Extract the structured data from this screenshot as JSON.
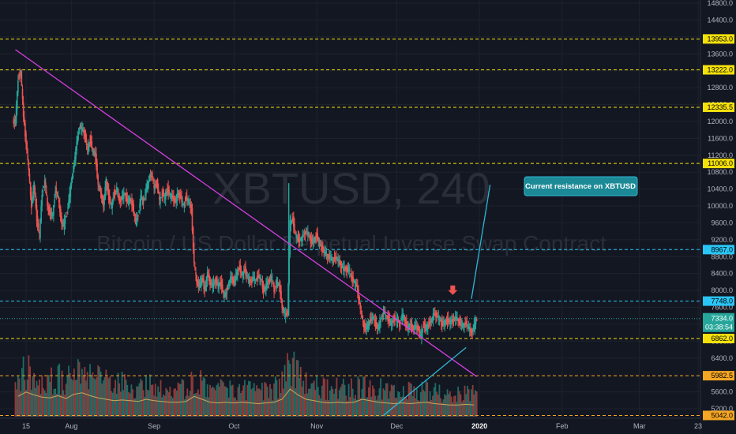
{
  "chart_data": {
    "type": "line",
    "symbol": "XBTUSD, 240",
    "description": "Bitcoin / US Dollar Perpetual Inverse Swap Contract",
    "ylim": [
      4800,
      15000
    ],
    "y_ticks": [
      5200,
      5600,
      6400,
      6800,
      7200,
      7600,
      8000,
      8400,
      8800,
      9200,
      9600,
      10000,
      10400,
      10800,
      11200,
      11600,
      12000,
      12400,
      12800,
      13200,
      13600,
      14000,
      14400,
      14800
    ],
    "y_tick_labels": [
      "5200.0",
      "5600.0",
      "6400.0",
      "6800.0",
      "7200.0",
      "7600.0",
      "8000.0",
      "8400.0",
      "8800.0",
      "9200.0",
      "9600.0",
      "10000.0",
      "10400.0",
      "10800.0",
      "11200.0",
      "11600.0",
      "12000.0",
      "12400.0",
      "12800.0",
      "13200.0",
      "13600.0",
      "14000.0",
      "14400.0",
      "14800.0"
    ],
    "x_ticks": [
      "15",
      "Aug",
      "Sep",
      "Oct",
      "Nov",
      "Dec",
      "2020",
      "Feb",
      "Mar",
      "23"
    ],
    "x_tick_days": [
      0,
      17,
      48,
      78,
      109,
      139,
      170,
      201,
      230,
      252
    ],
    "x_range_days": [
      -4,
      253
    ],
    "levels": [
      {
        "value": 13953,
        "label": "13953.0",
        "style": "yellow-dashed"
      },
      {
        "value": 13222,
        "label": "13222.0",
        "style": "yellow-dashed"
      },
      {
        "value": 12335.5,
        "label": "12335.5",
        "style": "yellow-dashed"
      },
      {
        "value": 11006,
        "label": "11006.0",
        "style": "yellow-dashed"
      },
      {
        "value": 8967,
        "label": "8967.0",
        "style": "cyan-dashed"
      },
      {
        "value": 7748,
        "label": "7748.0",
        "style": "cyan-dashed"
      },
      {
        "value": 6862,
        "label": "6862.0",
        "style": "yellow-dashed"
      },
      {
        "value": 5982.5,
        "label": "5982.5",
        "style": "orange-dashed"
      },
      {
        "value": 5042,
        "label": "5042.0",
        "style": "orange-dashed"
      }
    ],
    "last_price": {
      "value": 7334,
      "label": "7334.0",
      "countdown": "03:38:54"
    },
    "series": [
      {
        "values": [
          [
            -4,
            12000
          ],
          [
            -3,
            13000
          ],
          [
            -2,
            13200
          ],
          [
            -1,
            12100
          ],
          [
            0,
            11500
          ],
          [
            1,
            10800
          ],
          [
            2,
            10000
          ],
          [
            3,
            10500
          ],
          [
            4,
            9700
          ],
          [
            5,
            9300
          ],
          [
            6,
            10300
          ],
          [
            7,
            10600
          ],
          [
            8,
            10000
          ],
          [
            9,
            9800
          ],
          [
            10,
            9800
          ],
          [
            11,
            10400
          ],
          [
            12,
            10200
          ],
          [
            13,
            9700
          ],
          [
            14,
            9500
          ],
          [
            15,
            9800
          ],
          [
            16,
            10100
          ],
          [
            17,
            10600
          ],
          [
            18,
            11000
          ],
          [
            19,
            11500
          ],
          [
            20,
            11900
          ],
          [
            21,
            11800
          ],
          [
            22,
            11700
          ],
          [
            23,
            11300
          ],
          [
            24,
            11600
          ],
          [
            25,
            11300
          ],
          [
            26,
            11200
          ],
          [
            27,
            10500
          ],
          [
            28,
            10300
          ],
          [
            29,
            10000
          ],
          [
            30,
            10600
          ],
          [
            31,
            10200
          ],
          [
            32,
            10000
          ],
          [
            33,
            10300
          ],
          [
            34,
            10400
          ],
          [
            35,
            10100
          ],
          [
            36,
            10200
          ],
          [
            37,
            10300
          ],
          [
            38,
            10100
          ],
          [
            39,
            10150
          ],
          [
            40,
            10000
          ],
          [
            41,
            9600
          ],
          [
            42,
            9800
          ],
          [
            43,
            10200
          ],
          [
            44,
            10100
          ],
          [
            45,
            10400
          ],
          [
            46,
            10600
          ],
          [
            47,
            10800
          ],
          [
            48,
            10400
          ],
          [
            49,
            10600
          ],
          [
            50,
            10100
          ],
          [
            51,
            10300
          ],
          [
            52,
            10200
          ],
          [
            53,
            10400
          ],
          [
            54,
            10250
          ],
          [
            55,
            10200
          ],
          [
            56,
            10100
          ],
          [
            57,
            10300
          ],
          [
            58,
            10200
          ],
          [
            59,
            10000
          ],
          [
            60,
            10200
          ],
          [
            61,
            10100
          ],
          [
            62,
            9900
          ],
          [
            63,
            8600
          ],
          [
            64,
            8200
          ],
          [
            65,
            8100
          ],
          [
            66,
            8300
          ],
          [
            67,
            8000
          ],
          [
            68,
            8400
          ],
          [
            69,
            8200
          ],
          [
            70,
            8100
          ],
          [
            71,
            8250
          ],
          [
            72,
            8100
          ],
          [
            73,
            8200
          ],
          [
            74,
            7900
          ],
          [
            75,
            7900
          ],
          [
            76,
            8200
          ],
          [
            77,
            8300
          ],
          [
            78,
            8200
          ],
          [
            79,
            8400
          ],
          [
            80,
            8550
          ],
          [
            81,
            8350
          ],
          [
            82,
            8500
          ],
          [
            83,
            8300
          ],
          [
            84,
            8200
          ],
          [
            85,
            8300
          ],
          [
            86,
            8250
          ],
          [
            87,
            8350
          ],
          [
            88,
            8250
          ],
          [
            89,
            8000
          ],
          [
            90,
            8100
          ],
          [
            91,
            8250
          ],
          [
            92,
            8300
          ],
          [
            93,
            8000
          ],
          [
            94,
            8200
          ],
          [
            95,
            8100
          ],
          [
            96,
            7600
          ],
          [
            97,
            7400
          ],
          [
            98,
            7500
          ],
          [
            99,
            9600
          ],
          [
            100,
            9700
          ],
          [
            101,
            9300
          ],
          [
            102,
            9200
          ],
          [
            103,
            9200
          ],
          [
            104,
            9300
          ],
          [
            105,
            9400
          ],
          [
            106,
            9300
          ],
          [
            107,
            9150
          ],
          [
            108,
            9200
          ],
          [
            109,
            9300
          ],
          [
            110,
            9100
          ],
          [
            111,
            9000
          ],
          [
            112,
            8900
          ],
          [
            113,
            8800
          ],
          [
            114,
            8800
          ],
          [
            115,
            8700
          ],
          [
            116,
            8800
          ],
          [
            117,
            8700
          ],
          [
            118,
            8600
          ],
          [
            119,
            8500
          ],
          [
            120,
            8500
          ],
          [
            121,
            8500
          ],
          [
            122,
            8300
          ],
          [
            123,
            8200
          ],
          [
            124,
            8100
          ],
          [
            125,
            7700
          ],
          [
            126,
            7300
          ],
          [
            127,
            7100
          ],
          [
            128,
            7150
          ],
          [
            129,
            7300
          ],
          [
            130,
            7400
          ],
          [
            131,
            7200
          ],
          [
            132,
            7100
          ],
          [
            133,
            7300
          ],
          [
            134,
            7500
          ],
          [
            135,
            7400
          ],
          [
            136,
            7300
          ],
          [
            137,
            7200
          ],
          [
            138,
            7350
          ],
          [
            139,
            7300
          ],
          [
            140,
            7200
          ],
          [
            141,
            7400
          ],
          [
            142,
            7300
          ],
          [
            143,
            7100
          ],
          [
            144,
            7200
          ],
          [
            145,
            7100
          ],
          [
            146,
            7150
          ],
          [
            147,
            7100
          ],
          [
            148,
            6900
          ],
          [
            149,
            7200
          ],
          [
            150,
            7100
          ],
          [
            151,
            7200
          ],
          [
            152,
            7300
          ],
          [
            153,
            7450
          ],
          [
            154,
            7400
          ],
          [
            155,
            7300
          ],
          [
            156,
            7200
          ],
          [
            157,
            7250
          ],
          [
            158,
            7300
          ],
          [
            159,
            7250
          ],
          [
            160,
            7300
          ],
          [
            161,
            7350
          ],
          [
            162,
            7300
          ],
          [
            163,
            7200
          ],
          [
            164,
            7150
          ],
          [
            165,
            7250
          ],
          [
            166,
            7100
          ],
          [
            167,
            7000
          ],
          [
            168,
            7150
          ],
          [
            169,
            7334
          ]
        ]
      }
    ],
    "volume_series": [
      {
        "values": [
          [
            -3,
            140
          ],
          [
            0,
            170
          ],
          [
            3,
            150
          ],
          [
            6,
            135
          ],
          [
            9,
            130
          ],
          [
            12,
            145
          ],
          [
            15,
            125
          ],
          [
            18,
            155
          ],
          [
            21,
            165
          ],
          [
            24,
            145
          ],
          [
            27,
            130
          ],
          [
            30,
            120
          ],
          [
            33,
            110
          ],
          [
            36,
            115
          ],
          [
            39,
            110
          ],
          [
            42,
            105
          ],
          [
            45,
            120
          ],
          [
            48,
            110
          ],
          [
            51,
            105
          ],
          [
            54,
            100
          ],
          [
            57,
            100
          ],
          [
            60,
            105
          ],
          [
            63,
            140
          ],
          [
            66,
            120
          ],
          [
            69,
            100
          ],
          [
            72,
            95
          ],
          [
            75,
            100
          ],
          [
            78,
            95
          ],
          [
            81,
            100
          ],
          [
            84,
            95
          ],
          [
            87,
            90
          ],
          [
            90,
            95
          ],
          [
            93,
            100
          ],
          [
            96,
            120
          ],
          [
            99,
            190
          ],
          [
            102,
            150
          ],
          [
            105,
            120
          ],
          [
            108,
            110
          ],
          [
            111,
            100
          ],
          [
            114,
            95
          ],
          [
            117,
            100
          ],
          [
            120,
            95
          ],
          [
            123,
            100
          ],
          [
            126,
            120
          ],
          [
            129,
            110
          ],
          [
            132,
            100
          ],
          [
            135,
            95
          ],
          [
            138,
            90
          ],
          [
            141,
            95
          ],
          [
            144,
            90
          ],
          [
            147,
            95
          ],
          [
            150,
            100
          ],
          [
            153,
            90
          ],
          [
            156,
            85
          ],
          [
            159,
            80
          ],
          [
            162,
            80
          ],
          [
            165,
            85
          ],
          [
            168,
            80
          ]
        ]
      }
    ],
    "volume_range": [
      0,
      300
    ],
    "trendlines": [
      {
        "start": [
          -4,
          13700
        ],
        "end": [
          169,
          5960
        ],
        "color": "#d53fe0"
      },
      {
        "start": [
          134,
          5042
        ],
        "end": [
          165,
          6650
        ],
        "color": "#2fb7d6"
      },
      {
        "start": [
          167,
          7800
        ],
        "end": [
          174,
          10500
        ],
        "color": "#2fb7d6"
      }
    ],
    "callout": {
      "text": "Current resistance on XBTUSD",
      "color": "#1b8996"
    },
    "marker": {
      "type": "arrow-down",
      "x": 160,
      "y": 7950,
      "color": "#ef5350"
    }
  },
  "colors": {
    "background": "#131722",
    "grid": "#1e222d",
    "up": "#26a69a",
    "down": "#ef5350",
    "yellow": "#f5e10a",
    "cyan": "#29c5f6",
    "orange": "#f5a623",
    "price_tag": "#26a69a"
  }
}
